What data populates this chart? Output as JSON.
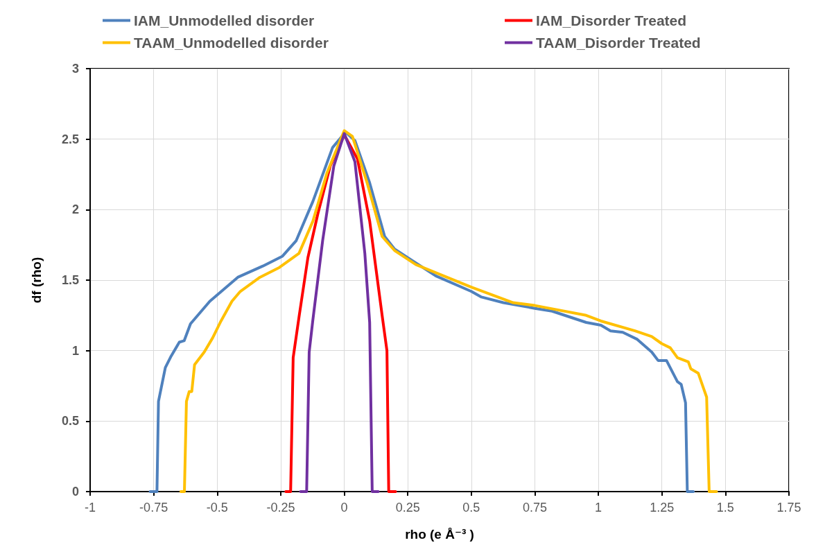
{
  "chart_data": {
    "type": "line",
    "xlabel": "rho (e Å⁻³ )",
    "ylabel": "df (rho)",
    "xlim": [
      -1,
      1.75
    ],
    "ylim": [
      0,
      3
    ],
    "xticks": [
      -1,
      -0.75,
      -0.5,
      -0.25,
      0,
      0.25,
      0.5,
      0.75,
      1,
      1.25,
      1.5,
      1.75
    ],
    "yticks": [
      0,
      0.5,
      1,
      1.5,
      2,
      2.5,
      3
    ],
    "grid": true,
    "legend": "top",
    "marker": "none",
    "line_style": "solid",
    "series": [
      {
        "name": "IAM_Unmodelled disorder",
        "color": "#4f81bd",
        "x": [
          -0.764,
          -0.737,
          -0.731,
          -0.704,
          -0.683,
          -0.649,
          -0.63,
          -0.605,
          -0.529,
          -0.419,
          -0.32,
          -0.243,
          -0.189,
          -0.123,
          -0.046,
          0.005,
          0.042,
          0.1,
          0.159,
          0.198,
          0.36,
          0.5,
          0.54,
          0.626,
          0.75,
          0.818,
          0.952,
          1.01,
          1.048,
          1.096,
          1.153,
          1.21,
          1.235,
          1.268,
          1.311,
          1.326,
          1.343,
          1.35,
          1.374
        ],
        "values": [
          0,
          0,
          0.64,
          0.88,
          0.955,
          1.06,
          1.07,
          1.19,
          1.35,
          1.52,
          1.6,
          1.67,
          1.78,
          2.06,
          2.44,
          2.55,
          2.49,
          2.19,
          1.81,
          1.72,
          1.53,
          1.42,
          1.38,
          1.34,
          1.3,
          1.28,
          1.2,
          1.18,
          1.14,
          1.13,
          1.08,
          0.99,
          0.93,
          0.93,
          0.78,
          0.76,
          0.63,
          0,
          0
        ]
      },
      {
        "name": "IAM_Disorder Treated",
        "color": "#ff0000",
        "x": [
          -0.23,
          -0.211,
          -0.201,
          -0.177,
          -0.143,
          -0.104,
          -0.055,
          0,
          0.052,
          0.1,
          0.149,
          0.168,
          0.175,
          0.202
        ],
        "values": [
          0,
          0,
          0.95,
          1.25,
          1.66,
          1.97,
          2.31,
          2.53,
          2.36,
          1.92,
          1.25,
          1.0,
          0,
          0
        ]
      },
      {
        "name": "TAAM_Unmodelled disorder",
        "color": "#ffc000",
        "x": [
          -0.643,
          -0.629,
          -0.621,
          -0.61,
          -0.6,
          -0.589,
          -0.551,
          -0.518,
          -0.485,
          -0.442,
          -0.409,
          -0.332,
          -0.255,
          -0.178,
          -0.123,
          -0.068,
          0,
          0.032,
          0.09,
          0.149,
          0.198,
          0.282,
          0.5,
          0.665,
          0.75,
          0.952,
          1.01,
          1.144,
          1.21,
          1.249,
          1.283,
          1.311,
          1.354,
          1.364,
          1.393,
          1.426,
          1.436,
          1.465
        ],
        "values": [
          0,
          0,
          0.64,
          0.71,
          0.71,
          0.9,
          0.99,
          1.09,
          1.21,
          1.35,
          1.42,
          1.52,
          1.59,
          1.69,
          1.92,
          2.26,
          2.56,
          2.52,
          2.19,
          1.81,
          1.71,
          1.61,
          1.45,
          1.34,
          1.32,
          1.25,
          1.21,
          1.14,
          1.1,
          1.05,
          1.02,
          0.95,
          0.92,
          0.87,
          0.84,
          0.67,
          0,
          0
        ]
      },
      {
        "name": "TAAM_Disorder Treated",
        "color": "#7030a0",
        "x": [
          -0.172,
          -0.148,
          -0.138,
          -0.124,
          -0.085,
          -0.041,
          0,
          0.042,
          0.081,
          0.1,
          0.11,
          0.134
        ],
        "values": [
          0,
          0,
          0.99,
          1.21,
          1.78,
          2.31,
          2.54,
          2.34,
          1.69,
          1.2,
          0,
          0
        ]
      }
    ]
  }
}
